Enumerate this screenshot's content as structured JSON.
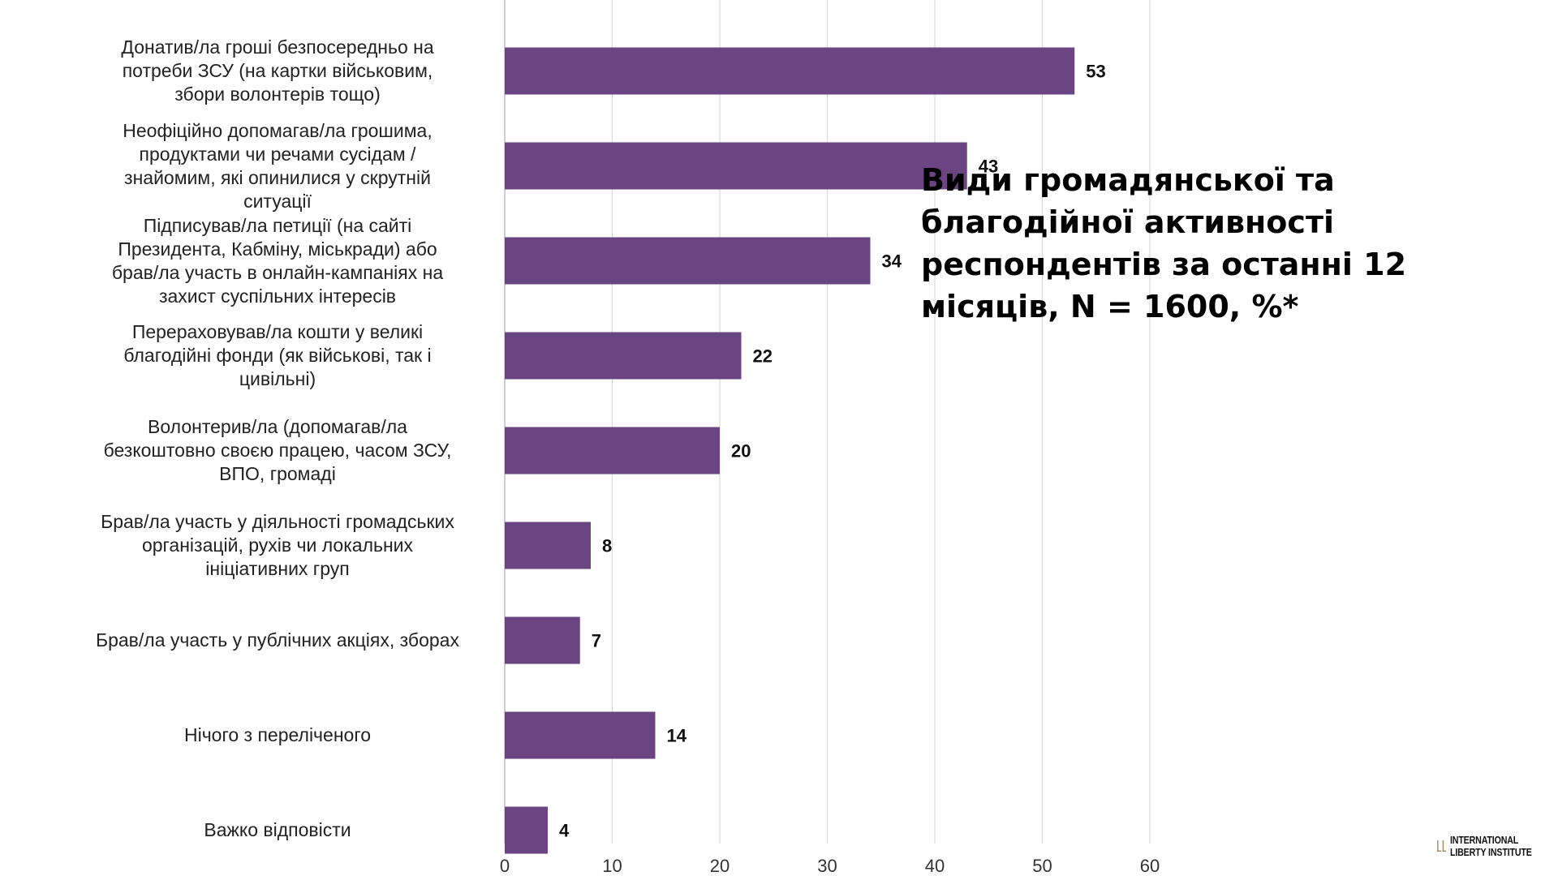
{
  "chart_data": {
    "type": "bar",
    "orientation": "horizontal",
    "title": "Види громадянської та благодійної активності респондентів за останні 12 місяців, N = 1600, %*",
    "categories": [
      "Донатив/ла гроші безпосередньо на\nпотреби ЗСУ (на картки військовим,\nзбори волонтерів тощо)",
      "Неофіційно допомагав/ла грошима,\nпродуктами чи речами сусідам  /\nзнайомим, які опинилися у скрутній\nситуації",
      "Підписував/ла петиції (на сайті\nПрезидента, Кабміну, міськради) або\nбрав/ла участь в онлайн-кампаніях на\nзахист суспільних інтересів",
      "Перераховував/ла кошти у великі\nблагодійні фонди (як військові, так і\nцивільні)",
      "Волонтерив/ла (допомагав/ла\nбезкоштовно своєю працею, часом ЗСУ,\nВПО, громаді",
      "Брав/ла участь у діяльності громадських\nорганізацій, рухів чи локальних\nініціативних груп",
      "Брав/ла участь у публічних акціях, зборах",
      "Нічого з переліченого",
      "Важко відповісти"
    ],
    "values": [
      53,
      43,
      34,
      22,
      20,
      8,
      7,
      14,
      4
    ],
    "value_labels": [
      "53",
      "43",
      "34",
      "22",
      "20",
      "8",
      "7",
      "14",
      "4"
    ],
    "xlim": [
      0,
      60
    ],
    "x_ticks": [
      "0",
      "10",
      "20",
      "30",
      "40",
      "50",
      "60"
    ],
    "xlabel": "",
    "ylabel": "",
    "grid": true,
    "legend": "none",
    "bar_color": "#6b4581",
    "grid_color": "#d9d9d9"
  },
  "logo": {
    "line1": "INTERNATIONAL",
    "line2": "LIBERTY INSTITUTE",
    "color": "#a88b63"
  }
}
